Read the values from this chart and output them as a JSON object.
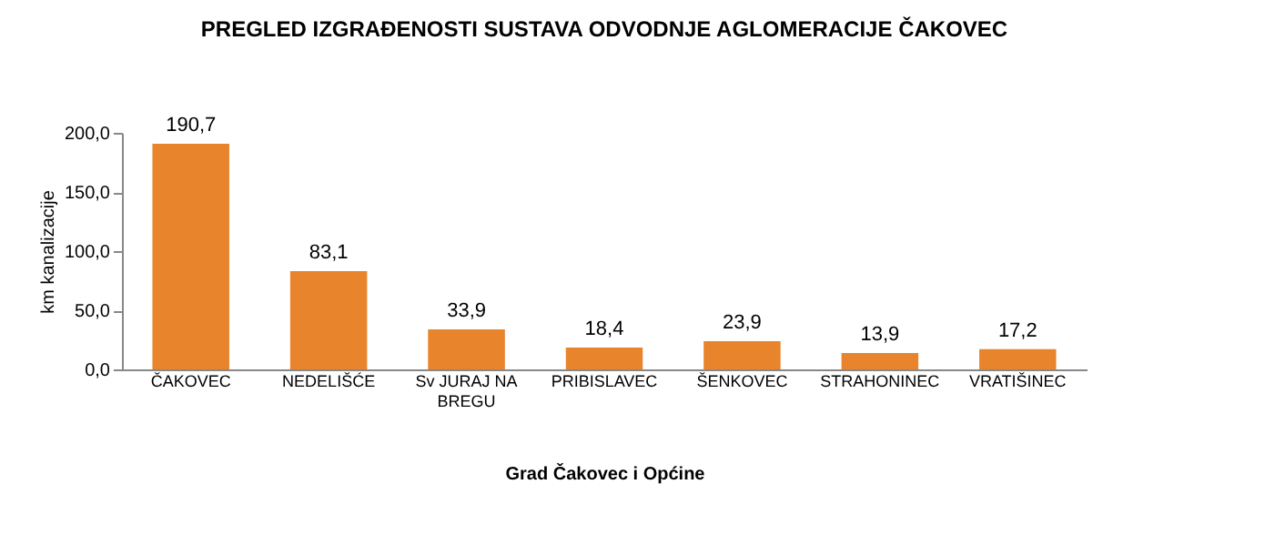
{
  "chart_data": {
    "type": "bar",
    "title": "PREGLED IZGRAĐENOSTI SUSTAVA ODVODNJE AGLOMERACIJE ČAKOVEC",
    "xlabel": "Grad Čakovec i Općine",
    "ylabel": "km kanalizacije",
    "categories": [
      "ČAKOVEC",
      "NEDELIŠĆE",
      "Sv JURAJ NA BREGU",
      "PRIBISLAVEC",
      "ŠENKOVEC",
      "STRAHONINEC",
      "VRATIŠINEC"
    ],
    "values": [
      190.7,
      83.1,
      33.9,
      18.4,
      23.9,
      13.9,
      17.2
    ],
    "value_labels": [
      "190,7",
      "83,1",
      "33,9",
      "18,4",
      "23,9",
      "13,9",
      "17,2"
    ],
    "color": "#e8842c",
    "ylim": [
      0,
      200
    ],
    "yticks": [
      {
        "value": 0,
        "label": "0,0"
      },
      {
        "value": 50,
        "label": "50,0"
      },
      {
        "value": 100,
        "label": "100,0"
      },
      {
        "value": 150,
        "label": "150,0"
      },
      {
        "value": 200,
        "label": "200,0"
      }
    ],
    "grid": false
  }
}
